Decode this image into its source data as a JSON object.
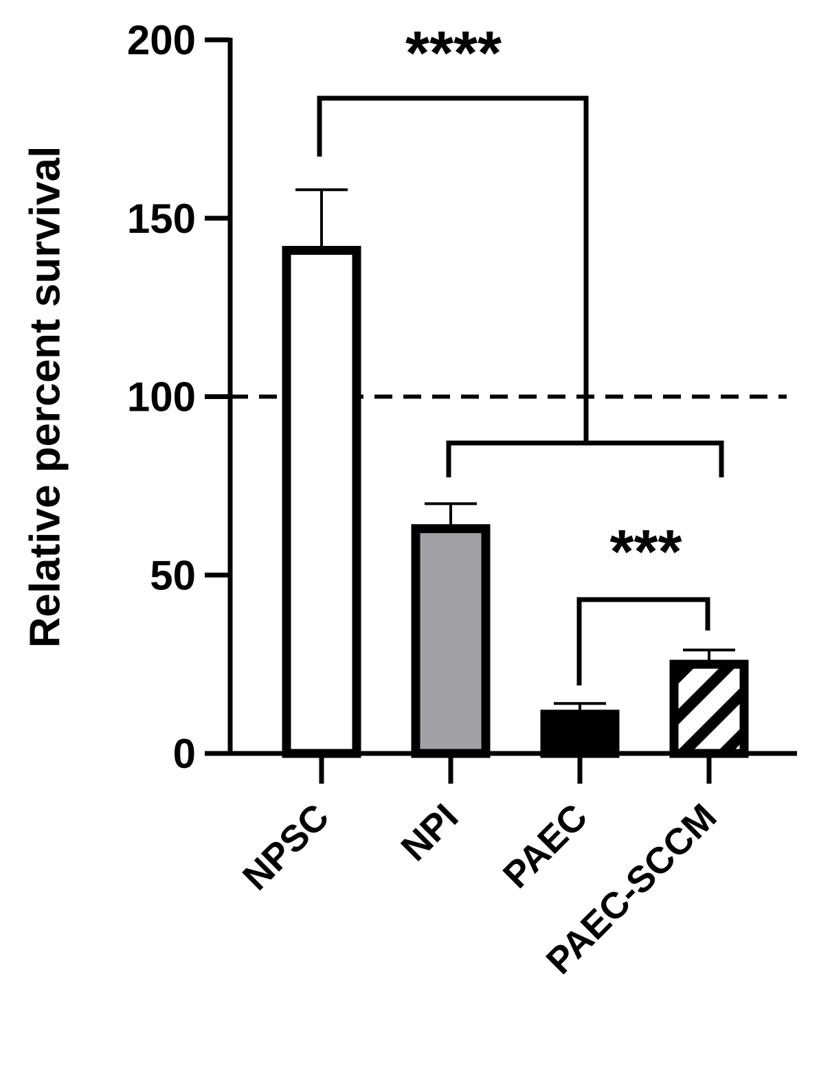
{
  "chart_data": {
    "type": "bar",
    "y_label": "Relative percent survival",
    "categories": [
      "NPSC",
      "NPI",
      "PAEC",
      "PAEC-SCCM"
    ],
    "values": [
      141,
      63,
      11,
      25
    ],
    "errors": [
      17,
      7,
      3,
      4
    ],
    "colors": [
      "#ffffff",
      "#a2a1a6",
      "#000000",
      "#ffffff"
    ],
    "hatched": [
      false,
      false,
      false,
      true
    ],
    "ylim": [
      0,
      200
    ],
    "yticks": [
      0,
      50,
      100,
      150,
      200
    ],
    "reference_line": 100,
    "annotations": [
      "****",
      "***"
    ]
  }
}
